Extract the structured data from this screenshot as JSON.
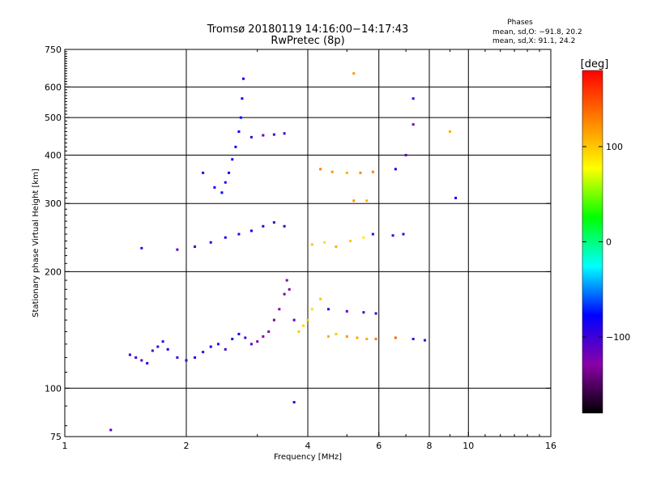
{
  "chart_data": {
    "type": "scatter",
    "title": "Tromsø 20180119 14:16:00−14:17:43",
    "subtitle": "RwPretec (8p)",
    "xlabel": "Frequency [MHz]",
    "ylabel": "Stationary phase Virtual Height [km]",
    "x_scale": "log",
    "y_scale": "log",
    "xlim": [
      1,
      16
    ],
    "ylim": [
      75,
      750
    ],
    "x_ticks": [
      1,
      2,
      4,
      6,
      8,
      10,
      16
    ],
    "x_tick_labels": [
      "1",
      "2",
      "4",
      "6",
      "8",
      "10",
      "16"
    ],
    "x_gridlines": [
      2,
      4,
      6,
      8,
      10
    ],
    "y_ticks": [
      75,
      100,
      200,
      300,
      400,
      500,
      600,
      750
    ],
    "y_tick_labels": [
      "75",
      "100",
      "200",
      "300",
      "400",
      "500",
      "600",
      "750"
    ],
    "y_gridlines": [
      100,
      200,
      300,
      400,
      500,
      600
    ],
    "grid": true,
    "stats": {
      "heading": "Phases",
      "line_o": "mean, sd,O: −91.8, 20.2",
      "line_x": "mean, sd,X:  91.1, 24.2"
    },
    "colorbar": {
      "label": "[deg]",
      "range": [
        -180,
        180
      ],
      "tick_values": [
        100,
        0,
        -100
      ],
      "tick_labels": [
        "100",
        "0",
        "−100"
      ],
      "colormap": [
        "#000000",
        "#8a00a8",
        "#0000ff",
        "#00ffff",
        "#00ff00",
        "#ffff00",
        "#ff8000",
        "#ff0000"
      ]
    },
    "series": [
      {
        "x": 1.45,
        "y": 122,
        "phase": -100
      },
      {
        "x": 1.5,
        "y": 120,
        "phase": -95
      },
      {
        "x": 1.55,
        "y": 118,
        "phase": -110
      },
      {
        "x": 1.6,
        "y": 116,
        "phase": -90
      },
      {
        "x": 1.65,
        "y": 125,
        "phase": -105
      },
      {
        "x": 1.7,
        "y": 128,
        "phase": -100
      },
      {
        "x": 1.75,
        "y": 132,
        "phase": -95
      },
      {
        "x": 1.8,
        "y": 126,
        "phase": -85
      },
      {
        "x": 1.9,
        "y": 120,
        "phase": -100
      },
      {
        "x": 2.0,
        "y": 118,
        "phase": -95
      },
      {
        "x": 2.1,
        "y": 120,
        "phase": -90
      },
      {
        "x": 2.2,
        "y": 124,
        "phase": -100
      },
      {
        "x": 2.3,
        "y": 128,
        "phase": -80
      },
      {
        "x": 2.4,
        "y": 130,
        "phase": -95
      },
      {
        "x": 2.5,
        "y": 126,
        "phase": -100
      },
      {
        "x": 2.6,
        "y": 134,
        "phase": -90
      },
      {
        "x": 2.7,
        "y": 138,
        "phase": -85
      },
      {
        "x": 2.8,
        "y": 135,
        "phase": -100
      },
      {
        "x": 2.9,
        "y": 130,
        "phase": -110
      },
      {
        "x": 3.0,
        "y": 132,
        "phase": -120
      },
      {
        "x": 3.1,
        "y": 136,
        "phase": -130
      },
      {
        "x": 3.2,
        "y": 140,
        "phase": -125
      },
      {
        "x": 3.3,
        "y": 150,
        "phase": -135
      },
      {
        "x": 3.4,
        "y": 160,
        "phase": -130
      },
      {
        "x": 3.5,
        "y": 175,
        "phase": -120
      },
      {
        "x": 3.55,
        "y": 190,
        "phase": -125
      },
      {
        "x": 3.6,
        "y": 180,
        "phase": -135
      },
      {
        "x": 3.7,
        "y": 150,
        "phase": -110
      },
      {
        "x": 3.8,
        "y": 140,
        "phase": 100
      },
      {
        "x": 3.9,
        "y": 145,
        "phase": 95
      },
      {
        "x": 4.0,
        "y": 150,
        "phase": 100
      },
      {
        "x": 4.1,
        "y": 160,
        "phase": 90
      },
      {
        "x": 4.3,
        "y": 170,
        "phase": 100
      },
      {
        "x": 4.5,
        "y": 136,
        "phase": 110
      },
      {
        "x": 4.7,
        "y": 138,
        "phase": 100
      },
      {
        "x": 5.0,
        "y": 136,
        "phase": 120
      },
      {
        "x": 5.3,
        "y": 135,
        "phase": 115
      },
      {
        "x": 5.6,
        "y": 134,
        "phase": 110
      },
      {
        "x": 5.9,
        "y": 134,
        "phase": 130
      },
      {
        "x": 4.5,
        "y": 160,
        "phase": -100
      },
      {
        "x": 5.0,
        "y": 158,
        "phase": -110
      },
      {
        "x": 5.5,
        "y": 157,
        "phase": -105
      },
      {
        "x": 5.9,
        "y": 156,
        "phase": -95
      },
      {
        "x": 1.55,
        "y": 230,
        "phase": -100
      },
      {
        "x": 1.9,
        "y": 228,
        "phase": -110
      },
      {
        "x": 2.1,
        "y": 232,
        "phase": -100
      },
      {
        "x": 2.3,
        "y": 238,
        "phase": -90
      },
      {
        "x": 2.5,
        "y": 245,
        "phase": -85
      },
      {
        "x": 2.7,
        "y": 250,
        "phase": -95
      },
      {
        "x": 2.9,
        "y": 255,
        "phase": -80
      },
      {
        "x": 3.1,
        "y": 262,
        "phase": -90
      },
      {
        "x": 3.3,
        "y": 268,
        "phase": -100
      },
      {
        "x": 3.5,
        "y": 262,
        "phase": -95
      },
      {
        "x": 2.2,
        "y": 360,
        "phase": -90
      },
      {
        "x": 2.35,
        "y": 330,
        "phase": -85
      },
      {
        "x": 2.45,
        "y": 320,
        "phase": -80
      },
      {
        "x": 2.5,
        "y": 340,
        "phase": -90
      },
      {
        "x": 2.55,
        "y": 360,
        "phase": -85
      },
      {
        "x": 2.6,
        "y": 390,
        "phase": -80
      },
      {
        "x": 2.65,
        "y": 420,
        "phase": -85
      },
      {
        "x": 2.7,
        "y": 460,
        "phase": -80
      },
      {
        "x": 2.73,
        "y": 500,
        "phase": -75
      },
      {
        "x": 2.75,
        "y": 560,
        "phase": -80
      },
      {
        "x": 2.77,
        "y": 630,
        "phase": -85
      },
      {
        "x": 2.9,
        "y": 445,
        "phase": -100
      },
      {
        "x": 3.1,
        "y": 450,
        "phase": -110
      },
      {
        "x": 3.3,
        "y": 452,
        "phase": -105
      },
      {
        "x": 3.5,
        "y": 455,
        "phase": -100
      },
      {
        "x": 4.3,
        "y": 368,
        "phase": 130
      },
      {
        "x": 4.6,
        "y": 362,
        "phase": 120
      },
      {
        "x": 5.0,
        "y": 360,
        "phase": 110
      },
      {
        "x": 5.4,
        "y": 360,
        "phase": 125
      },
      {
        "x": 5.8,
        "y": 362,
        "phase": 130
      },
      {
        "x": 4.1,
        "y": 235,
        "phase": 100
      },
      {
        "x": 4.4,
        "y": 238,
        "phase": 90
      },
      {
        "x": 4.7,
        "y": 232,
        "phase": 110
      },
      {
        "x": 5.1,
        "y": 240,
        "phase": 100
      },
      {
        "x": 5.5,
        "y": 245,
        "phase": 85
      },
      {
        "x": 5.8,
        "y": 250,
        "phase": -100
      },
      {
        "x": 6.5,
        "y": 248,
        "phase": -100
      },
      {
        "x": 6.9,
        "y": 250,
        "phase": -95
      },
      {
        "x": 5.2,
        "y": 305,
        "phase": 120
      },
      {
        "x": 5.6,
        "y": 305,
        "phase": 110
      },
      {
        "x": 6.6,
        "y": 368,
        "phase": -80
      },
      {
        "x": 7.0,
        "y": 400,
        "phase": -110
      },
      {
        "x": 7.3,
        "y": 480,
        "phase": -120
      },
      {
        "x": 7.3,
        "y": 560,
        "phase": -100
      },
      {
        "x": 9.0,
        "y": 460,
        "phase": 110
      },
      {
        "x": 9.3,
        "y": 310,
        "phase": -80
      },
      {
        "x": 6.6,
        "y": 135,
        "phase": 140
      },
      {
        "x": 7.3,
        "y": 134,
        "phase": -100
      },
      {
        "x": 7.8,
        "y": 133,
        "phase": -95
      },
      {
        "x": 1.3,
        "y": 78,
        "phase": -110
      },
      {
        "x": 3.7,
        "y": 92,
        "phase": -90
      },
      {
        "x": 5.2,
        "y": 650,
        "phase": 120
      }
    ]
  }
}
